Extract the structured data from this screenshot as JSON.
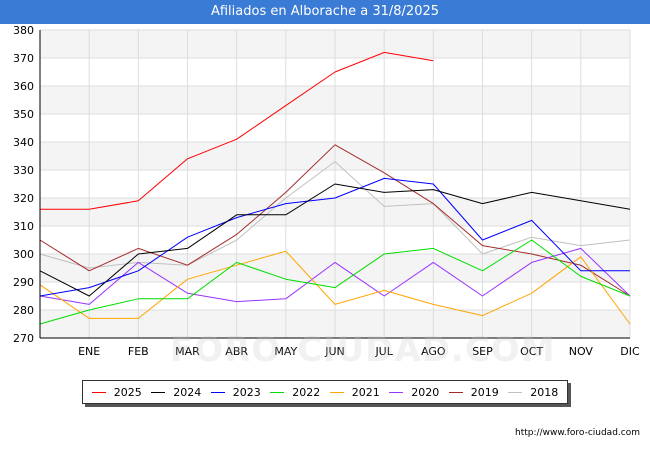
{
  "title": "Afiliados en Alborache a 31/8/2025",
  "footer_url": "http://www.foro-ciudad.com",
  "watermark": "FORO-CIUDAD.COM",
  "chart_data": {
    "type": "line",
    "title": "Afiliados en Alborache a 31/8/2025",
    "xlabel": "",
    "ylabel": "",
    "ylim": [
      270,
      380
    ],
    "yticks": [
      270,
      280,
      290,
      300,
      310,
      320,
      330,
      340,
      350,
      360,
      370,
      380
    ],
    "categories": [
      "",
      "ENE",
      "FEB",
      "MAR",
      "ABR",
      "MAY",
      "JUN",
      "JUL",
      "AGO",
      "SEP",
      "OCT",
      "NOV",
      "DIC"
    ],
    "grid": true,
    "legend": "bottom",
    "series": [
      {
        "name": "2025",
        "color": "#ff0000",
        "values": [
          316,
          316,
          319,
          334,
          341,
          353,
          365,
          372,
          369,
          null,
          null,
          null,
          null
        ]
      },
      {
        "name": "2024",
        "color": "#000000",
        "values": [
          294,
          285,
          300,
          302,
          314,
          314,
          325,
          322,
          323,
          318,
          322,
          319,
          316
        ]
      },
      {
        "name": "2023",
        "color": "#0000ff",
        "values": [
          285,
          288,
          294,
          306,
          313,
          318,
          320,
          327,
          325,
          305,
          312,
          294,
          294
        ]
      },
      {
        "name": "2022",
        "color": "#00dd00",
        "values": [
          275,
          280,
          284,
          284,
          297,
          291,
          288,
          300,
          302,
          294,
          305,
          292,
          285
        ]
      },
      {
        "name": "2021",
        "color": "#ffa500",
        "values": [
          289,
          277,
          277,
          291,
          296,
          301,
          282,
          287,
          282,
          278,
          286,
          299,
          275
        ]
      },
      {
        "name": "2020",
        "color": "#9933ff",
        "values": [
          285,
          282,
          297,
          286,
          283,
          284,
          297,
          285,
          297,
          285,
          297,
          302,
          285
        ]
      },
      {
        "name": "2019",
        "color": "#a52a2a",
        "values": [
          305,
          294,
          302,
          296,
          307,
          322,
          339,
          329,
          318,
          303,
          300,
          296,
          285
        ]
      },
      {
        "name": "2018",
        "color": "#c0c0c0",
        "values": [
          300,
          295,
          297,
          296,
          305,
          320,
          333,
          317,
          318,
          300,
          306,
          303,
          305
        ]
      }
    ]
  }
}
